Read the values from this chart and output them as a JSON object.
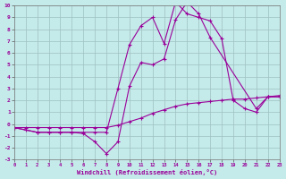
{
  "xlabel": "Windchill (Refroidissement éolien,°C)",
  "background_color": "#c5eaea",
  "grid_color": "#9dc0c0",
  "line_color": "#990099",
  "xlim": [
    0,
    23
  ],
  "ylim": [
    -3,
    10
  ],
  "xtick_vals": [
    0,
    1,
    2,
    3,
    4,
    5,
    6,
    7,
    8,
    9,
    10,
    11,
    12,
    13,
    14,
    15,
    16,
    17,
    18,
    19,
    20,
    21,
    22,
    23
  ],
  "ytick_vals": [
    -3,
    -2,
    -1,
    0,
    1,
    2,
    3,
    4,
    5,
    6,
    7,
    8,
    9,
    10
  ],
  "curve1_x": [
    0,
    1,
    2,
    3,
    4,
    5,
    6,
    7,
    8,
    9,
    10,
    11,
    12,
    13,
    14,
    15,
    16,
    17,
    18,
    19,
    20,
    21,
    22,
    23
  ],
  "curve1_y": [
    -0.3,
    -0.3,
    -0.3,
    -0.3,
    -0.3,
    -0.3,
    -0.3,
    -0.3,
    -0.3,
    -0.1,
    0.2,
    0.5,
    0.9,
    1.2,
    1.5,
    1.7,
    1.8,
    1.9,
    2.0,
    2.1,
    2.1,
    2.2,
    2.3,
    2.4
  ],
  "curve2_x": [
    0,
    2,
    3,
    4,
    5,
    6,
    7,
    8,
    9,
    10,
    11,
    12,
    13,
    14,
    15,
    16,
    17,
    21,
    22,
    23
  ],
  "curve2_y": [
    -0.3,
    -0.7,
    -0.7,
    -0.7,
    -0.7,
    -0.8,
    -1.5,
    -2.5,
    -1.5,
    3.2,
    5.2,
    5.0,
    5.5,
    8.8,
    10.3,
    9.3,
    7.3,
    1.3,
    2.3,
    2.3
  ],
  "curve3_x": [
    0,
    1,
    2,
    3,
    4,
    5,
    6,
    7,
    8,
    9,
    10,
    11,
    12,
    13,
    14,
    15,
    16,
    17,
    18,
    19,
    20,
    21,
    22,
    23
  ],
  "curve3_y": [
    -0.3,
    -0.5,
    -0.7,
    -0.7,
    -0.7,
    -0.7,
    -0.7,
    -0.7,
    -0.7,
    3.0,
    6.7,
    8.3,
    9.0,
    6.8,
    10.3,
    9.3,
    9.0,
    8.7,
    7.2,
    2.0,
    1.3,
    1.0,
    2.3,
    2.3
  ]
}
